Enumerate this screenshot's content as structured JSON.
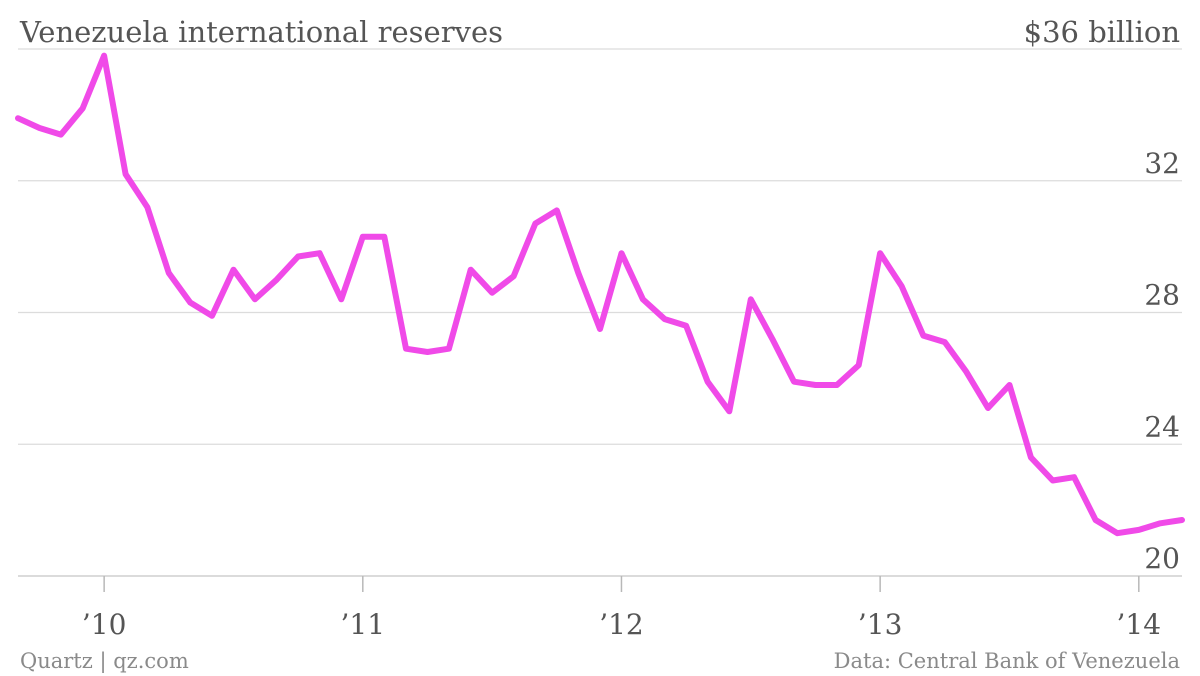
{
  "chart_data": {
    "type": "line",
    "title": "Venezuela international reserves",
    "y_unit_label": "$36 billion",
    "ylim": [
      20,
      36
    ],
    "y_ticks": [
      32,
      28,
      24,
      20
    ],
    "x_ticks": [
      {
        "label": "’10",
        "x": 2010.0
      },
      {
        "label": "’11",
        "x": 2011.0
      },
      {
        "label": "’12",
        "x": 2012.0
      },
      {
        "label": "’13",
        "x": 2013.0
      },
      {
        "label": "’14",
        "x": 2014.0
      }
    ],
    "xlim": [
      2009.667,
      2014.167
    ],
    "grid": true,
    "series": [
      {
        "color": "#f04ae8",
        "points": [
          [
            2009.667,
            33.9
          ],
          [
            2009.75,
            33.6
          ],
          [
            2009.833,
            33.4
          ],
          [
            2009.917,
            34.2
          ],
          [
            2010.0,
            35.8
          ],
          [
            2010.083,
            32.2
          ],
          [
            2010.167,
            31.2
          ],
          [
            2010.25,
            29.2
          ],
          [
            2010.333,
            28.3
          ],
          [
            2010.417,
            27.9
          ],
          [
            2010.5,
            29.3
          ],
          [
            2010.583,
            28.4
          ],
          [
            2010.667,
            29.0
          ],
          [
            2010.75,
            29.7
          ],
          [
            2010.833,
            29.8
          ],
          [
            2010.917,
            28.4
          ],
          [
            2011.0,
            30.3
          ],
          [
            2011.083,
            30.3
          ],
          [
            2011.167,
            26.9
          ],
          [
            2011.25,
            26.8
          ],
          [
            2011.333,
            26.9
          ],
          [
            2011.417,
            29.3
          ],
          [
            2011.5,
            28.6
          ],
          [
            2011.583,
            29.1
          ],
          [
            2011.667,
            30.7
          ],
          [
            2011.75,
            31.1
          ],
          [
            2011.833,
            29.2
          ],
          [
            2011.917,
            27.5
          ],
          [
            2012.0,
            29.8
          ],
          [
            2012.083,
            28.4
          ],
          [
            2012.167,
            27.8
          ],
          [
            2012.25,
            27.6
          ],
          [
            2012.333,
            25.9
          ],
          [
            2012.417,
            25.0
          ],
          [
            2012.5,
            28.4
          ],
          [
            2012.583,
            27.2
          ],
          [
            2012.667,
            25.9
          ],
          [
            2012.75,
            25.8
          ],
          [
            2012.833,
            25.8
          ],
          [
            2012.917,
            26.4
          ],
          [
            2013.0,
            29.8
          ],
          [
            2013.083,
            28.8
          ],
          [
            2013.167,
            27.3
          ],
          [
            2013.25,
            27.1
          ],
          [
            2013.333,
            26.2
          ],
          [
            2013.417,
            25.1
          ],
          [
            2013.5,
            25.8
          ],
          [
            2013.583,
            23.6
          ],
          [
            2013.667,
            22.9
          ],
          [
            2013.75,
            23.0
          ],
          [
            2013.833,
            21.7
          ],
          [
            2013.917,
            21.3
          ],
          [
            2014.0,
            21.4
          ],
          [
            2014.083,
            21.6
          ],
          [
            2014.167,
            21.7
          ]
        ]
      }
    ]
  },
  "footer": {
    "left": "Quartz | qz.com",
    "right": "Data: Central Bank of Venezuela"
  }
}
